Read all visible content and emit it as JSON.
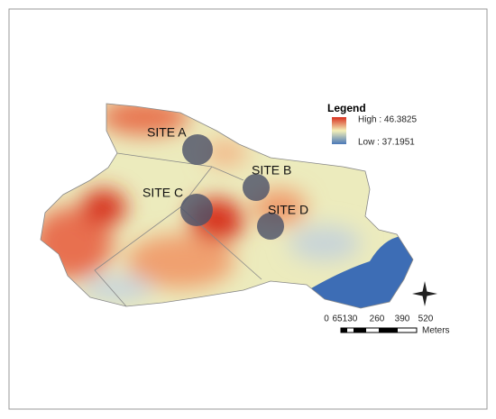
{
  "legend": {
    "title": "Legend",
    "high": "High : 46.3825",
    "low": "Low : 37.1951"
  },
  "sites": [
    {
      "label": "SITE A"
    },
    {
      "label": "SITE B"
    },
    {
      "label": "SITE C"
    },
    {
      "label": "SITE D"
    }
  ],
  "scale_bar": {
    "ticks": [
      "0",
      "65",
      "130",
      "260",
      "390",
      "520"
    ],
    "unit": "Meters"
  }
}
